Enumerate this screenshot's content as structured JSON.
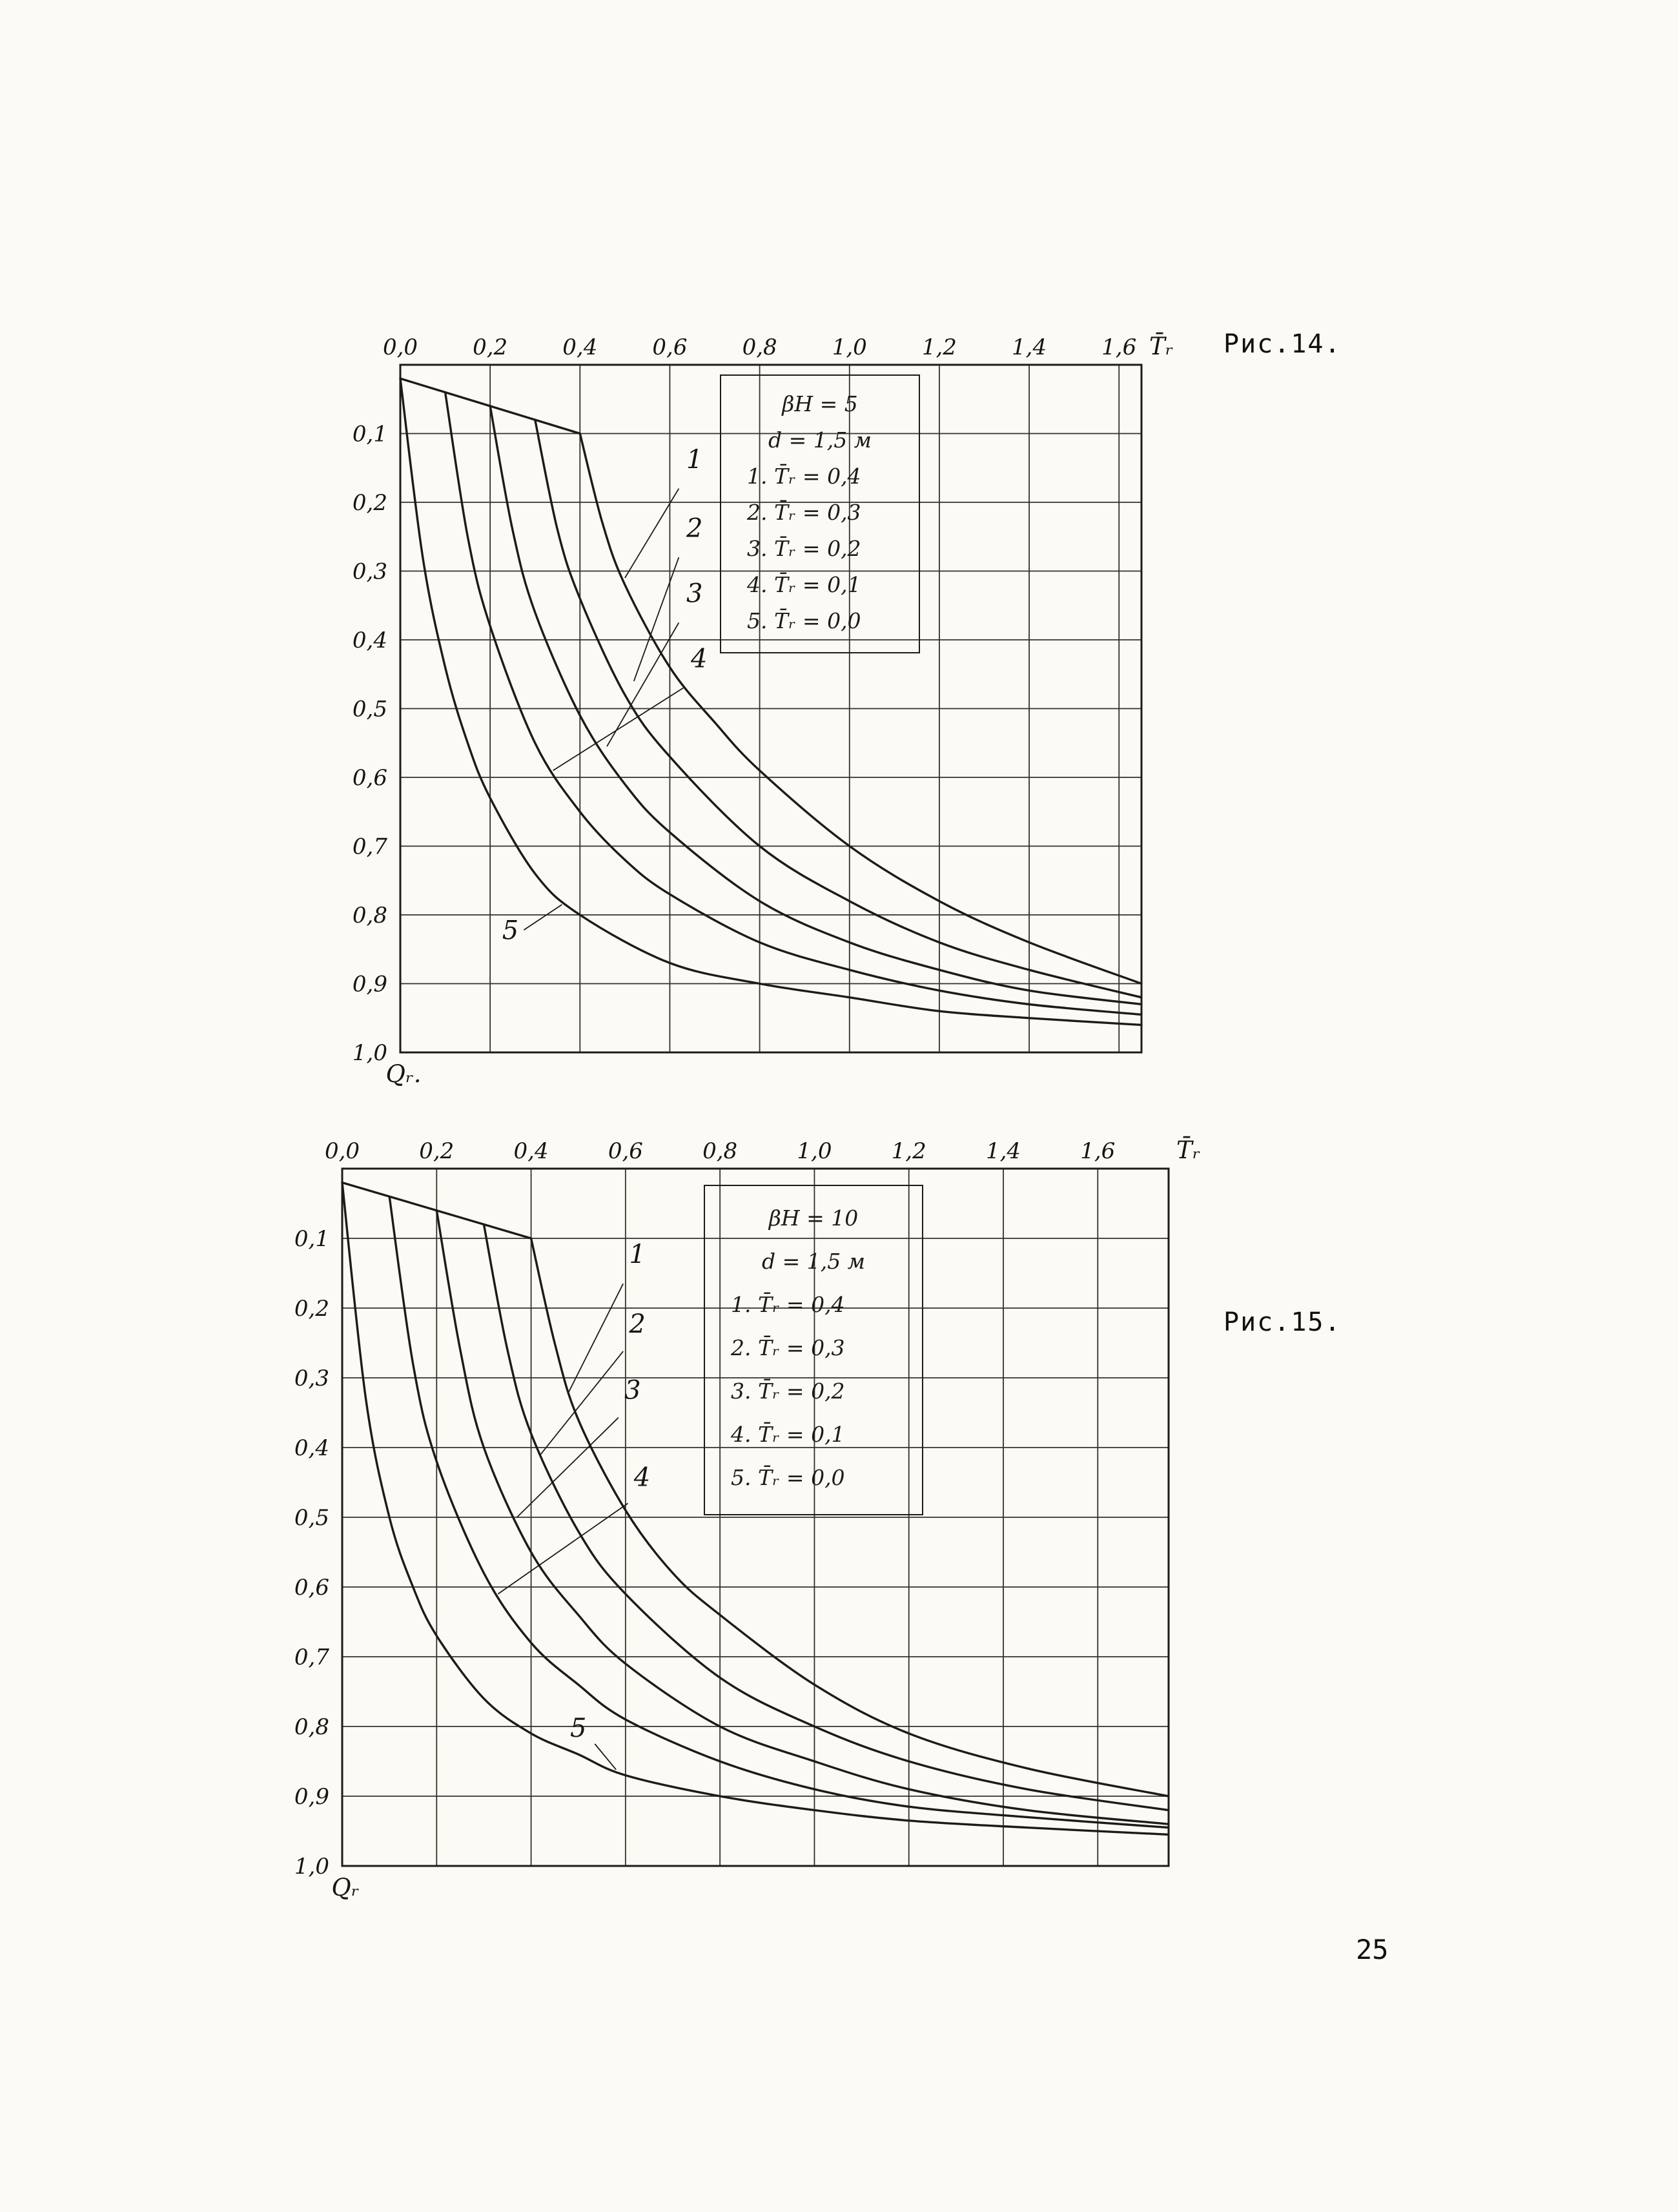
{
  "page": {
    "number": "25",
    "paper_color": "#fbfaf5",
    "ink_color": "#1d1b19"
  },
  "chart_data": [
    {
      "type": "line",
      "caption": "Рис.14.",
      "xlabel": "T̄ᵣ",
      "ylabel": "Qᵣ.",
      "x_range": [
        0,
        1.65
      ],
      "y_range": [
        0,
        1.0
      ],
      "y_inverted": true,
      "grid": {
        "x_step": 0.2,
        "y_step": 0.1,
        "on": true
      },
      "x_ticks": [
        {
          "value": 0.0,
          "label": "0,0"
        },
        {
          "value": 0.2,
          "label": "0,2"
        },
        {
          "value": 0.4,
          "label": "0,4"
        },
        {
          "value": 0.6,
          "label": "0,6"
        },
        {
          "value": 0.8,
          "label": "0,8"
        },
        {
          "value": 1.0,
          "label": "1,0"
        },
        {
          "value": 1.2,
          "label": "1,2"
        },
        {
          "value": 1.4,
          "label": "1,4"
        },
        {
          "value": 1.6,
          "label": "1,6"
        }
      ],
      "y_ticks": [
        {
          "value": 0.1,
          "label": "0,1"
        },
        {
          "value": 0.2,
          "label": "0,2"
        },
        {
          "value": 0.3,
          "label": "0,3"
        },
        {
          "value": 0.4,
          "label": "0,4"
        },
        {
          "value": 0.5,
          "label": "0,5"
        },
        {
          "value": 0.6,
          "label": "0,6"
        },
        {
          "value": 0.7,
          "label": "0,7"
        },
        {
          "value": 0.8,
          "label": "0,8"
        },
        {
          "value": 0.9,
          "label": "0,9"
        },
        {
          "value": 1.0,
          "label": "1,0"
        }
      ],
      "legend": {
        "param1": "βH = 5",
        "param2": "d = 1,5 м",
        "items": [
          "1. T̄ᵣ = 0,4",
          "2. T̄ᵣ = 0,3",
          "3. T̄ᵣ = 0,2",
          "4. T̄ᵣ = 0,1",
          "5. T̄ᵣ = 0,0"
        ]
      },
      "origin_line": [
        [
          0.0,
          0.02
        ],
        [
          0.4,
          0.1
        ]
      ],
      "series": [
        {
          "name": "1",
          "tr": 0.4,
          "points": [
            [
              0.4,
              0.1
            ],
            [
              0.45,
              0.23
            ],
            [
              0.5,
              0.32
            ],
            [
              0.6,
              0.44
            ],
            [
              0.7,
              0.52
            ],
            [
              0.8,
              0.59
            ],
            [
              1.0,
              0.7
            ],
            [
              1.2,
              0.78
            ],
            [
              1.4,
              0.84
            ],
            [
              1.65,
              0.9
            ]
          ]
        },
        {
          "name": "2",
          "tr": 0.3,
          "points": [
            [
              0.3,
              0.08
            ],
            [
              0.35,
              0.24
            ],
            [
              0.4,
              0.34
            ],
            [
              0.5,
              0.48
            ],
            [
              0.6,
              0.57
            ],
            [
              0.8,
              0.7
            ],
            [
              1.0,
              0.78
            ],
            [
              1.2,
              0.84
            ],
            [
              1.4,
              0.88
            ],
            [
              1.65,
              0.92
            ]
          ]
        },
        {
          "name": "3",
          "tr": 0.2,
          "points": [
            [
              0.2,
              0.06
            ],
            [
              0.25,
              0.24
            ],
            [
              0.3,
              0.36
            ],
            [
              0.4,
              0.51
            ],
            [
              0.5,
              0.61
            ],
            [
              0.6,
              0.68
            ],
            [
              0.8,
              0.78
            ],
            [
              1.0,
              0.84
            ],
            [
              1.2,
              0.88
            ],
            [
              1.4,
              0.91
            ],
            [
              1.65,
              0.93
            ]
          ]
        },
        {
          "name": "4",
          "tr": 0.1,
          "points": [
            [
              0.1,
              0.04
            ],
            [
              0.15,
              0.25
            ],
            [
              0.2,
              0.38
            ],
            [
              0.3,
              0.55
            ],
            [
              0.4,
              0.65
            ],
            [
              0.5,
              0.72
            ],
            [
              0.6,
              0.77
            ],
            [
              0.8,
              0.84
            ],
            [
              1.0,
              0.88
            ],
            [
              1.2,
              0.91
            ],
            [
              1.4,
              0.93
            ],
            [
              1.65,
              0.945
            ]
          ]
        },
        {
          "name": "5",
          "tr": 0.0,
          "points": [
            [
              0.0,
              0.02
            ],
            [
              0.05,
              0.28
            ],
            [
              0.1,
              0.44
            ],
            [
              0.15,
              0.55
            ],
            [
              0.2,
              0.63
            ],
            [
              0.3,
              0.74
            ],
            [
              0.4,
              0.8
            ],
            [
              0.6,
              0.87
            ],
            [
              0.8,
              0.9
            ],
            [
              1.0,
              0.92
            ],
            [
              1.2,
              0.94
            ],
            [
              1.4,
              0.95
            ],
            [
              1.65,
              0.96
            ]
          ]
        }
      ],
      "annotations": [
        {
          "label": "1",
          "text": [
            0.655,
            0.15
          ],
          "leader": [
            [
              0.62,
              0.18
            ],
            [
              0.5,
              0.31
            ]
          ]
        },
        {
          "label": "2",
          "text": [
            0.655,
            0.25
          ],
          "leader": [
            [
              0.62,
              0.28
            ],
            [
              0.52,
              0.46
            ]
          ]
        },
        {
          "label": "3",
          "text": [
            0.655,
            0.345
          ],
          "leader": [
            [
              0.62,
              0.375
            ],
            [
              0.46,
              0.555
            ]
          ]
        },
        {
          "label": "4",
          "text": [
            0.665,
            0.44
          ],
          "leader": [
            [
              0.63,
              0.47
            ],
            [
              0.34,
              0.59
            ]
          ]
        },
        {
          "label": "5",
          "text": [
            0.245,
            0.835
          ],
          "leader": [
            [
              0.275,
              0.822
            ],
            [
              0.36,
              0.785
            ]
          ]
        }
      ]
    },
    {
      "type": "line",
      "caption": "Рис.15.",
      "xlabel": "T̄ᵣ",
      "ylabel": "Qᵣ",
      "x_range": [
        0,
        1.75
      ],
      "y_range": [
        0,
        1.0
      ],
      "y_inverted": true,
      "grid": {
        "x_step": 0.2,
        "y_step": 0.1,
        "on": true
      },
      "x_ticks": [
        {
          "value": 0.0,
          "label": "0,0"
        },
        {
          "value": 0.2,
          "label": "0,2"
        },
        {
          "value": 0.4,
          "label": "0,4"
        },
        {
          "value": 0.6,
          "label": "0,6"
        },
        {
          "value": 0.8,
          "label": "0,8"
        },
        {
          "value": 1.0,
          "label": "1,0"
        },
        {
          "value": 1.2,
          "label": "1,2"
        },
        {
          "value": 1.4,
          "label": "1,4"
        },
        {
          "value": 1.6,
          "label": "1,6"
        }
      ],
      "y_ticks": [
        {
          "value": 0.1,
          "label": "0,1"
        },
        {
          "value": 0.2,
          "label": "0,2"
        },
        {
          "value": 0.3,
          "label": "0,3"
        },
        {
          "value": 0.4,
          "label": "0,4"
        },
        {
          "value": 0.5,
          "label": "0,5"
        },
        {
          "value": 0.6,
          "label": "0,6"
        },
        {
          "value": 0.7,
          "label": "0,7"
        },
        {
          "value": 0.8,
          "label": "0,8"
        },
        {
          "value": 0.9,
          "label": "0,9"
        },
        {
          "value": 1.0,
          "label": "1,0"
        }
      ],
      "legend": {
        "param1": "βH = 10",
        "param2": "d = 1,5 м",
        "items": [
          "1. T̄ᵣ = 0,4",
          "2. T̄ᵣ = 0,3",
          "3. T̄ᵣ = 0,2",
          "4. T̄ᵣ = 0,1",
          "5. T̄ᵣ = 0,0"
        ]
      },
      "origin_line": [
        [
          0.0,
          0.02
        ],
        [
          0.4,
          0.1
        ]
      ],
      "series": [
        {
          "name": "1",
          "tr": 0.4,
          "points": [
            [
              0.4,
              0.1
            ],
            [
              0.45,
              0.25
            ],
            [
              0.5,
              0.36
            ],
            [
              0.6,
              0.49
            ],
            [
              0.7,
              0.58
            ],
            [
              0.8,
              0.64
            ],
            [
              1.0,
              0.74
            ],
            [
              1.2,
              0.81
            ],
            [
              1.45,
              0.86
            ],
            [
              1.75,
              0.9
            ]
          ]
        },
        {
          "name": "2",
          "tr": 0.3,
          "points": [
            [
              0.3,
              0.08
            ],
            [
              0.35,
              0.26
            ],
            [
              0.4,
              0.38
            ],
            [
              0.5,
              0.52
            ],
            [
              0.6,
              0.61
            ],
            [
              0.8,
              0.73
            ],
            [
              1.0,
              0.8
            ],
            [
              1.2,
              0.85
            ],
            [
              1.45,
              0.89
            ],
            [
              1.75,
              0.92
            ]
          ]
        },
        {
          "name": "3",
          "tr": 0.2,
          "points": [
            [
              0.2,
              0.06
            ],
            [
              0.25,
              0.26
            ],
            [
              0.3,
              0.4
            ],
            [
              0.4,
              0.55
            ],
            [
              0.5,
              0.64
            ],
            [
              0.6,
              0.71
            ],
            [
              0.8,
              0.8
            ],
            [
              1.0,
              0.85
            ],
            [
              1.2,
              0.89
            ],
            [
              1.45,
              0.92
            ],
            [
              1.75,
              0.94
            ]
          ]
        },
        {
          "name": "4",
          "tr": 0.1,
          "points": [
            [
              0.1,
              0.04
            ],
            [
              0.15,
              0.28
            ],
            [
              0.2,
              0.42
            ],
            [
              0.3,
              0.58
            ],
            [
              0.4,
              0.68
            ],
            [
              0.5,
              0.74
            ],
            [
              0.6,
              0.79
            ],
            [
              0.8,
              0.85
            ],
            [
              1.0,
              0.89
            ],
            [
              1.2,
              0.915
            ],
            [
              1.45,
              0.93
            ],
            [
              1.75,
              0.945
            ]
          ]
        },
        {
          "name": "5",
          "tr": 0.0,
          "points": [
            [
              0.0,
              0.02
            ],
            [
              0.05,
              0.33
            ],
            [
              0.1,
              0.5
            ],
            [
              0.15,
              0.6
            ],
            [
              0.2,
              0.67
            ],
            [
              0.3,
              0.76
            ],
            [
              0.4,
              0.81
            ],
            [
              0.5,
              0.84
            ],
            [
              0.6,
              0.87
            ],
            [
              0.8,
              0.9
            ],
            [
              1.0,
              0.92
            ],
            [
              1.2,
              0.935
            ],
            [
              1.45,
              0.945
            ],
            [
              1.75,
              0.955
            ]
          ]
        }
      ],
      "annotations": [
        {
          "label": "1",
          "text": [
            0.625,
            0.135
          ],
          "leader": [
            [
              0.595,
              0.165
            ],
            [
              0.48,
              0.32
            ]
          ]
        },
        {
          "label": "2",
          "text": [
            0.625,
            0.235
          ],
          "leader": [
            [
              0.595,
              0.262
            ],
            [
              0.42,
              0.41
            ]
          ]
        },
        {
          "label": "3",
          "text": [
            0.615,
            0.33
          ],
          "leader": [
            [
              0.585,
              0.357
            ],
            [
              0.37,
              0.5
            ]
          ]
        },
        {
          "label": "4",
          "text": [
            0.635,
            0.455
          ],
          "leader": [
            [
              0.605,
              0.48
            ],
            [
              0.33,
              0.61
            ]
          ]
        },
        {
          "label": "5",
          "text": [
            0.5,
            0.815
          ],
          "leader": [
            [
              0.535,
              0.825
            ],
            [
              0.58,
              0.862
            ]
          ]
        }
      ]
    }
  ]
}
